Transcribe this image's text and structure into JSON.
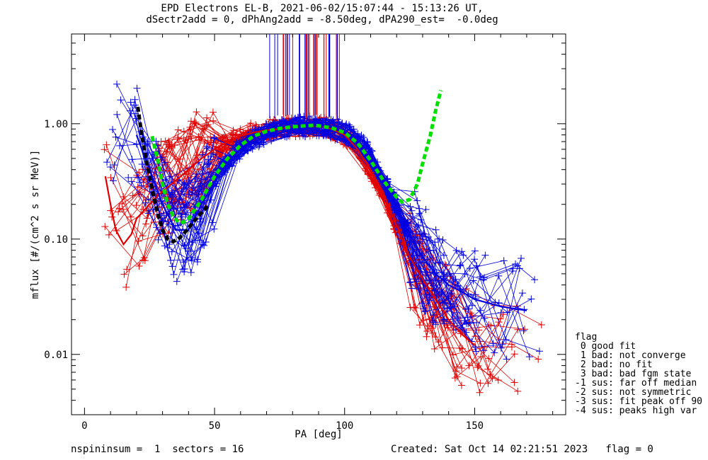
{
  "title_line1": "EPD Electrons EL-B, 2021-06-02/15:07:44 - 15:13:26 UT,",
  "title_line2": "dSectr2add = 0, dPhAng2add = -8.50deg, dPA290_est=  -0.0deg",
  "footer_left": "nspininsum =  1  sectors = 16",
  "footer_right": "Created: Sat Oct 14 02:21:51 2023   flag = 0",
  "legend": {
    "title": "flag",
    "items": [
      " 0 good fit",
      " 1 bad: not converge",
      " 2 bad: no fit",
      " 3 bad: bad fgm state",
      "-1 sus: far off median",
      "-2 sus: not symmetric",
      "-3 sus: fit peak off 90",
      "-4 sus: peaks high var"
    ]
  },
  "colors": {
    "red": "#e00000",
    "blue": "#0000e0",
    "green": "#00e000",
    "black": "#000000"
  },
  "chart_data": {
    "type": "line",
    "xlabel": "PA [deg]",
    "ylabel": "mflux [#/(cm^2 s sr MeV)]",
    "xlim": [
      -5,
      185
    ],
    "ylim": [
      0.003,
      6.0
    ],
    "yscale": "log",
    "x_ticks": [
      0,
      50,
      100,
      150
    ],
    "x_tick_labels": [
      "0",
      "50",
      "100",
      "150"
    ],
    "y_ticks": [
      0.01,
      0.1,
      1.0
    ],
    "y_tick_labels": [
      "0.01",
      "0.10",
      "1.00"
    ],
    "grid": false,
    "series": [
      {
        "color": "red",
        "x": [
          8,
          10,
          12,
          15,
          18,
          20,
          25,
          30,
          35,
          40,
          45,
          50,
          55,
          60,
          65,
          70,
          75,
          80,
          85,
          88,
          92,
          95,
          100,
          105,
          110,
          115,
          120,
          125,
          130,
          135,
          140,
          145,
          150
        ],
        "y": [
          0.35,
          0.2,
          0.12,
          0.09,
          0.11,
          0.15,
          0.2,
          0.26,
          0.32,
          0.4,
          0.5,
          0.6,
          0.7,
          0.78,
          0.84,
          0.88,
          0.9,
          0.93,
          0.95,
          0.96,
          0.95,
          0.9,
          0.8,
          0.6,
          0.4,
          0.25,
          0.13,
          0.07,
          0.045,
          0.03,
          0.02,
          0.015,
          0.012
        ]
      },
      {
        "color": "blue",
        "x": [
          20,
          25,
          30,
          35,
          40,
          45,
          50,
          55,
          60,
          65,
          70,
          75,
          80,
          85,
          88,
          92,
          95,
          100,
          105,
          110,
          115,
          120,
          125,
          130,
          135,
          140,
          145,
          150,
          155,
          160,
          165,
          170
        ],
        "y": [
          0.8,
          0.4,
          0.2,
          0.12,
          0.12,
          0.2,
          0.32,
          0.48,
          0.62,
          0.74,
          0.82,
          0.88,
          0.92,
          0.95,
          0.97,
          0.96,
          0.93,
          0.85,
          0.72,
          0.52,
          0.32,
          0.19,
          0.11,
          0.07,
          0.05,
          0.04,
          0.035,
          0.03,
          0.028,
          0.026,
          0.025,
          0.024
        ]
      },
      {
        "color": "green",
        "style": "dashed-fit",
        "x": [
          26,
          28,
          30,
          32,
          34,
          36,
          38,
          40,
          45,
          50,
          55,
          60,
          65,
          70,
          75,
          80,
          85,
          88,
          90,
          95,
          100,
          105,
          110,
          115,
          120,
          122,
          125,
          128,
          130,
          133,
          135,
          137
        ],
        "y": [
          0.78,
          0.5,
          0.3,
          0.2,
          0.16,
          0.14,
          0.14,
          0.15,
          0.22,
          0.35,
          0.5,
          0.65,
          0.78,
          0.86,
          0.91,
          0.94,
          0.96,
          0.97,
          0.96,
          0.92,
          0.84,
          0.68,
          0.48,
          0.32,
          0.23,
          0.21,
          0.22,
          0.3,
          0.45,
          0.8,
          1.3,
          1.95
        ]
      },
      {
        "color": "black",
        "style": "dashed-fit",
        "x": [
          20.5,
          22,
          24,
          26,
          28,
          30,
          32,
          34,
          36,
          38,
          40,
          44,
          48
        ],
        "y": [
          1.4,
          0.8,
          0.45,
          0.27,
          0.17,
          0.12,
          0.1,
          0.095,
          0.1,
          0.11,
          0.125,
          0.16,
          0.2
        ]
      }
    ]
  }
}
